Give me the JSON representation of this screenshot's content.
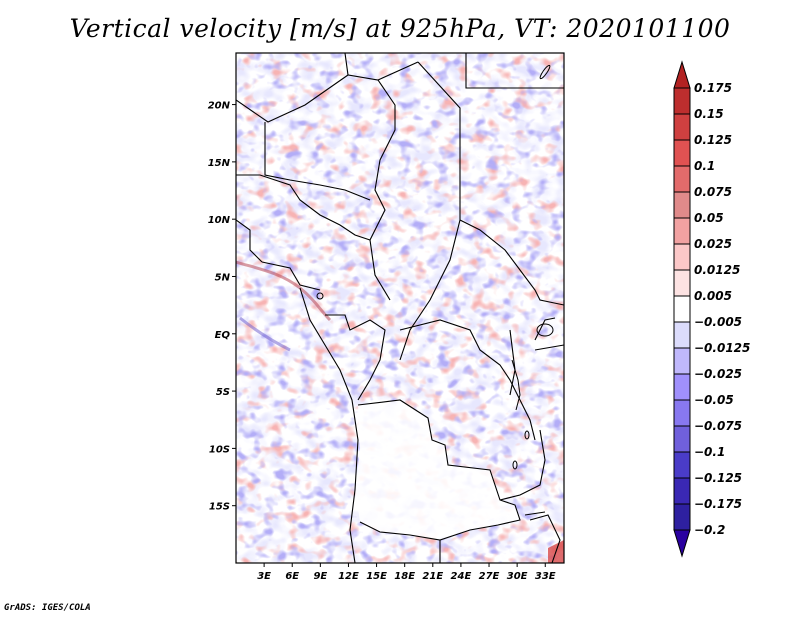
{
  "title": "Vertical velocity [m/s] at 925hPa, VT: 2020101100",
  "footer": "GrADS: IGES/COLA",
  "chart_data": {
    "type": "heatmap",
    "title": "Vertical velocity [m/s] at 925hPa, VT: 2020101100",
    "variable": "Vertical velocity",
    "units": "m/s",
    "level": "925hPa",
    "valid_time": "2020101100",
    "xlabel": "",
    "ylabel": "",
    "lon_range": [
      0,
      35
    ],
    "lat_range": [
      -20,
      24.5
    ],
    "x_ticks": [
      {
        "value": 3,
        "label": "3E"
      },
      {
        "value": 6,
        "label": "6E"
      },
      {
        "value": 9,
        "label": "9E"
      },
      {
        "value": 12,
        "label": "12E"
      },
      {
        "value": 15,
        "label": "15E"
      },
      {
        "value": 18,
        "label": "18E"
      },
      {
        "value": 21,
        "label": "21E"
      },
      {
        "value": 24,
        "label": "24E"
      },
      {
        "value": 27,
        "label": "27E"
      },
      {
        "value": 30,
        "label": "30E"
      },
      {
        "value": 33,
        "label": "33E"
      }
    ],
    "y_ticks": [
      {
        "value": 20,
        "label": "20N"
      },
      {
        "value": 15,
        "label": "15N"
      },
      {
        "value": 10,
        "label": "10N"
      },
      {
        "value": 5,
        "label": "5N"
      },
      {
        "value": 0,
        "label": "EQ"
      },
      {
        "value": -5,
        "label": "5S"
      },
      {
        "value": -10,
        "label": "10S"
      },
      {
        "value": -15,
        "label": "15S"
      }
    ],
    "colorbar": {
      "orientation": "vertical",
      "levels": [
        0.175,
        0.15,
        0.125,
        0.1,
        0.075,
        0.05,
        0.025,
        0.0125,
        0.005,
        -0.005,
        -0.0125,
        -0.025,
        -0.05,
        -0.075,
        -0.1,
        -0.125,
        -0.175,
        -0.2
      ],
      "labels": [
        "0.175",
        "0.15",
        "0.125",
        "0.1",
        "0.075",
        "0.05",
        "0.025",
        "0.0125",
        "0.005",
        "−0.005",
        "−0.0125",
        "−0.025",
        "−0.05",
        "−0.075",
        "−0.1",
        "−0.125",
        "−0.175",
        "−0.2"
      ],
      "colors": [
        "#b22222",
        "#bd2e2e",
        "#cf4040",
        "#e05252",
        "#e36b6b",
        "#e08a8a",
        "#f2a2a2",
        "#fcc8c8",
        "#fde3e3",
        "#ffffff",
        "#dcdcfc",
        "#c0b8fc",
        "#a090fc",
        "#8878f0",
        "#7060dc",
        "#4a3cc8",
        "#3a28b4",
        "#2e20a0",
        "#2a00a0"
      ],
      "extend": "both"
    },
    "pattern_description": "Noisy alternating positive (red) and negative (blue) vertical velocity features across Central/West Africa; mostly near-zero (white) over Angola/Zambia interior; strong negative band near Nigerian coast and Gulf of Guinea; strongest values near Lake Malawi/Mozambique corner."
  }
}
